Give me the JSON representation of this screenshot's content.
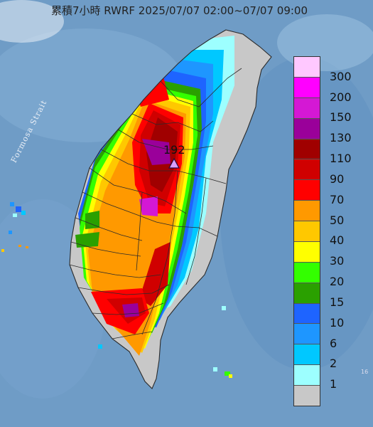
{
  "title": "累積7小時 RWRF 2025/07/07 02:00~07/07 09:00",
  "map_labels": {
    "strait": "Formosa Strait",
    "max_value": "192"
  },
  "legend": {
    "labels": [
      "300",
      "200",
      "150",
      "130",
      "110",
      "90",
      "70",
      "50",
      "40",
      "30",
      "20",
      "15",
      "10",
      "6",
      "2",
      "1"
    ],
    "colors": [
      "#ffc8ff",
      "#ff00ff",
      "#d418d4",
      "#9a009a",
      "#a00000",
      "#d00000",
      "#ff0000",
      "#ff9900",
      "#ffc800",
      "#ffff00",
      "#33ff00",
      "#2aa000",
      "#1e64ff",
      "#1e96ff",
      "#00c8ff",
      "#9dffff",
      "#c8c8c8"
    ]
  }
}
